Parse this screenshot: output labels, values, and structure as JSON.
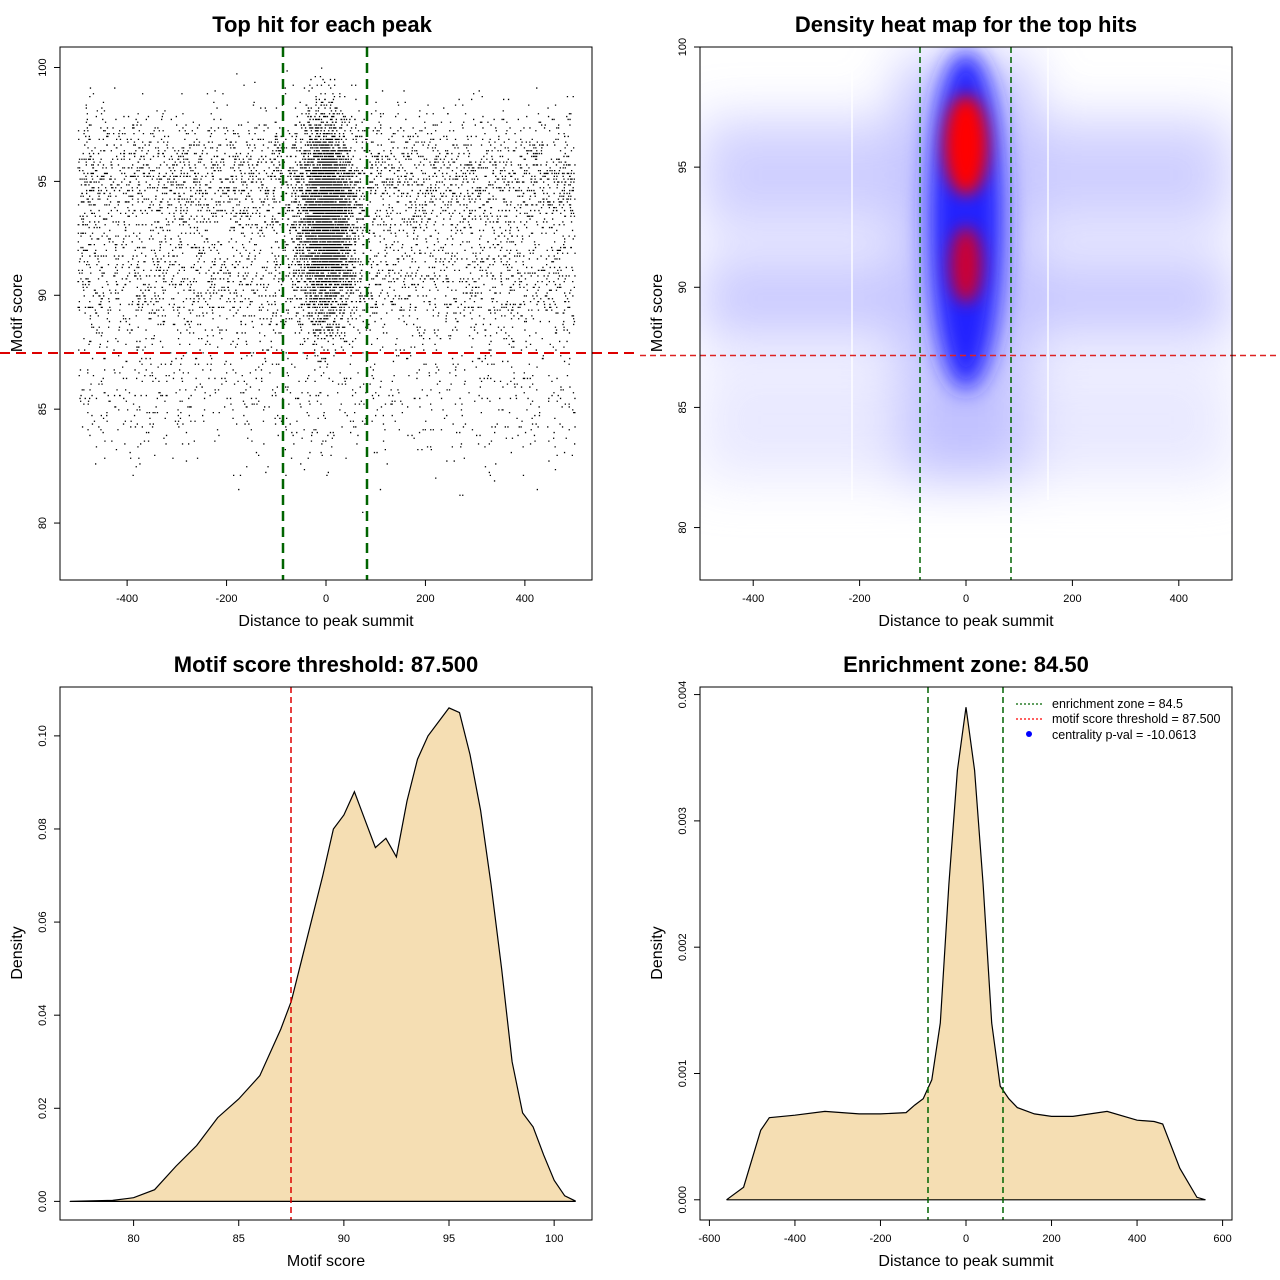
{
  "panels": {
    "scatter": {
      "title": "Top hit for each peak",
      "xlabel": "Distance to peak summit",
      "ylabel": "Motif score"
    },
    "heatmap": {
      "title": "Density heat map for the top hits",
      "xlabel": "Distance to peak summit",
      "ylabel": "Motif score"
    },
    "score_density": {
      "title": "Motif score threshold: 87.500",
      "xlabel": "Motif score",
      "ylabel": "Density"
    },
    "distance_density": {
      "title": "Enrichment zone: 84.50",
      "xlabel": "Distance to peak summit",
      "ylabel": "Density",
      "legend": [
        {
          "label": "enrichment zone = 84.5",
          "color": "#006400",
          "style": "dotted"
        },
        {
          "label": "motif score threshold = 87.500",
          "color": "#ff0000",
          "style": "dotted"
        },
        {
          "label": "centrality p-val = -10.0613",
          "color": "#0000ff",
          "style": "point"
        }
      ]
    }
  },
  "colors": {
    "fill": "#f5deb3",
    "threshold": "#dd0000",
    "zone": "#006400",
    "heat_low": "#ffffff",
    "heat_mid": "#0000ff",
    "heat_high": "#ff0000",
    "points": "#000000"
  },
  "chart_data": [
    {
      "type": "scatter",
      "title": "Top hit for each peak",
      "xlabel": "Distance to peak summit",
      "ylabel": "Motif score",
      "xlim": [
        -535,
        535
      ],
      "ylim": [
        77.5,
        100.9
      ],
      "xticks": [
        -400,
        -200,
        0,
        200,
        400
      ],
      "yticks": [
        80,
        85,
        90,
        95,
        100
      ],
      "point_cloud": {
        "x_range": [
          -500,
          500
        ],
        "y_range": [
          78,
          100
        ],
        "central_peak_x": 0,
        "dense_y_range": [
          88,
          98
        ]
      },
      "vlines": [
        -84.5,
        84.5
      ],
      "hline": 87.5
    },
    {
      "type": "heatmap",
      "title": "Density heat map for the top hits",
      "xlabel": "Distance to peak summit",
      "ylabel": "Motif score",
      "xlim": [
        -500,
        500
      ],
      "ylim": [
        78.4,
        100
      ],
      "xticks": [
        -400,
        -200,
        0,
        200,
        400
      ],
      "yticks": [
        80,
        85,
        90,
        95,
        100
      ],
      "hotspots": [
        {
          "x": 5,
          "y": 96,
          "level": "high"
        },
        {
          "x": 5,
          "y": 91,
          "level": "high"
        }
      ],
      "vlines": [
        -84.5,
        84.5
      ],
      "hline": 87.5
    },
    {
      "type": "area",
      "title": "Motif score threshold: 87.500",
      "xlabel": "Motif score",
      "ylabel": "Density",
      "xlim": [
        76.5,
        101.8
      ],
      "ylim": [
        -0.004,
        0.1105
      ],
      "xticks": [
        80,
        85,
        90,
        95,
        100
      ],
      "yticks": [
        0.0,
        0.02,
        0.04,
        0.06,
        0.08,
        0.1
      ],
      "x": [
        77,
        79,
        80,
        81,
        82,
        83,
        84,
        85,
        86,
        87,
        87.5,
        88,
        89,
        89.5,
        90,
        90.5,
        91,
        91.5,
        92,
        92.5,
        93,
        93.5,
        94,
        94.5,
        95,
        95.5,
        96,
        96.5,
        97,
        97.5,
        98,
        98.5,
        99,
        99.5,
        100,
        100.5,
        101
      ],
      "values": [
        0.0,
        0.0002,
        0.0008,
        0.0025,
        0.0075,
        0.012,
        0.018,
        0.022,
        0.027,
        0.037,
        0.043,
        0.052,
        0.07,
        0.08,
        0.083,
        0.088,
        0.082,
        0.076,
        0.078,
        0.074,
        0.086,
        0.095,
        0.1,
        0.103,
        0.106,
        0.105,
        0.096,
        0.084,
        0.068,
        0.05,
        0.03,
        0.019,
        0.016,
        0.01,
        0.0045,
        0.0012,
        0.0001
      ]
    },
    {
      "type": "area",
      "title": "Enrichment zone: 84.50",
      "xlabel": "Distance to peak summit",
      "ylabel": "Density",
      "xlim": [
        -622,
        622
      ],
      "ylim": [
        -0.00016,
        0.00406
      ],
      "xticks": [
        -600,
        -400,
        -200,
        0,
        200,
        400,
        600
      ],
      "yticks": [
        0.0,
        0.001,
        0.002,
        0.003,
        0.004
      ],
      "x": [
        -560,
        -520,
        -480,
        -460,
        -400,
        -330,
        -250,
        -200,
        -140,
        -120,
        -100,
        -80,
        -60,
        -40,
        -20,
        0,
        20,
        40,
        60,
        80,
        100,
        120,
        160,
        200,
        250,
        330,
        400,
        440,
        460,
        500,
        540,
        560
      ],
      "values": [
        0.0,
        0.0001,
        0.00055,
        0.00065,
        0.00067,
        0.0007,
        0.00068,
        0.00068,
        0.00069,
        0.00075,
        0.0008,
        0.00095,
        0.0014,
        0.0025,
        0.0034,
        0.0039,
        0.0034,
        0.0025,
        0.0014,
        0.0009,
        0.0008,
        0.00073,
        0.00068,
        0.00066,
        0.00066,
        0.0007,
        0.00063,
        0.00062,
        0.0006,
        0.00025,
        2e-05,
        0.0
      ],
      "vlines": [
        -84.5,
        84.5
      ]
    }
  ]
}
